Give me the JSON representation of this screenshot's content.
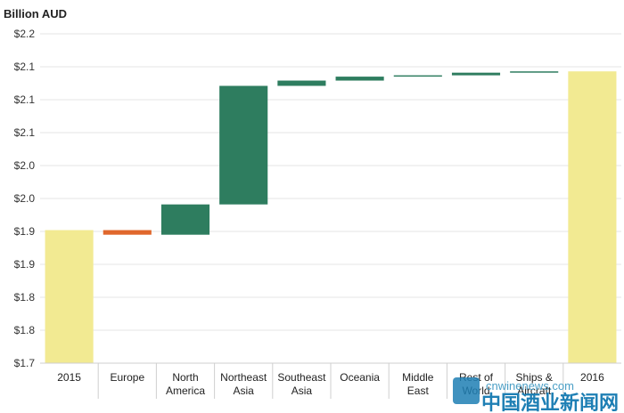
{
  "chart_data": {
    "type": "bar",
    "subtype": "waterfall",
    "title": "Billion AUD",
    "xlabel": "",
    "ylabel": "",
    "ylim": [
      1.7,
      2.2
    ],
    "ytick_values": [
      1.7,
      1.75,
      1.8,
      1.85,
      1.9,
      1.95,
      2.0,
      2.05,
      2.1,
      2.15,
      2.2
    ],
    "ytick_labels": [
      "$1.7",
      "$1.8",
      "$1.8",
      "$1.9",
      "$1.9",
      "$2.0",
      "$2.0",
      "$2.1",
      "$2.1",
      "$2.1",
      "$2.2"
    ],
    "grid": true,
    "legend": "none",
    "categories": [
      "2015",
      "Europe",
      "North America",
      "Northeast Asia",
      "Southeast Asia",
      "Oceania",
      "Middle East",
      "Rest of World",
      "Ships & Aircraft",
      "2016"
    ],
    "category_lines": [
      [
        "2015"
      ],
      [
        "Europe"
      ],
      [
        "North",
        "America"
      ],
      [
        "Northeast",
        "Asia"
      ],
      [
        "Southeast",
        "Asia"
      ],
      [
        "Oceania"
      ],
      [
        "Middle",
        "East"
      ],
      [
        "Rest of",
        "World"
      ],
      [
        "Ships &",
        "Aircraft"
      ],
      [
        "2016"
      ]
    ],
    "bars": [
      {
        "kind": "total",
        "start": 1.7,
        "end": 1.902
      },
      {
        "kind": "decrease",
        "start": 1.902,
        "end": 1.895
      },
      {
        "kind": "increase",
        "start": 1.895,
        "end": 1.941
      },
      {
        "kind": "increase",
        "start": 1.941,
        "end": 2.121
      },
      {
        "kind": "increase",
        "start": 2.121,
        "end": 2.129
      },
      {
        "kind": "increase",
        "start": 2.129,
        "end": 2.135
      },
      {
        "kind": "increase",
        "start": 2.135,
        "end": 2.137
      },
      {
        "kind": "increase",
        "start": 2.137,
        "end": 2.141
      },
      {
        "kind": "increase",
        "start": 2.141,
        "end": 2.143
      },
      {
        "kind": "total",
        "start": 1.7,
        "end": 2.143
      }
    ],
    "colors": {
      "total": "#f2ea92",
      "increase": "#2e7d5f",
      "decrease": "#e0672c"
    }
  },
  "watermark": {
    "url": "cnwinenews.com",
    "name": "中国酒业新闻网"
  }
}
